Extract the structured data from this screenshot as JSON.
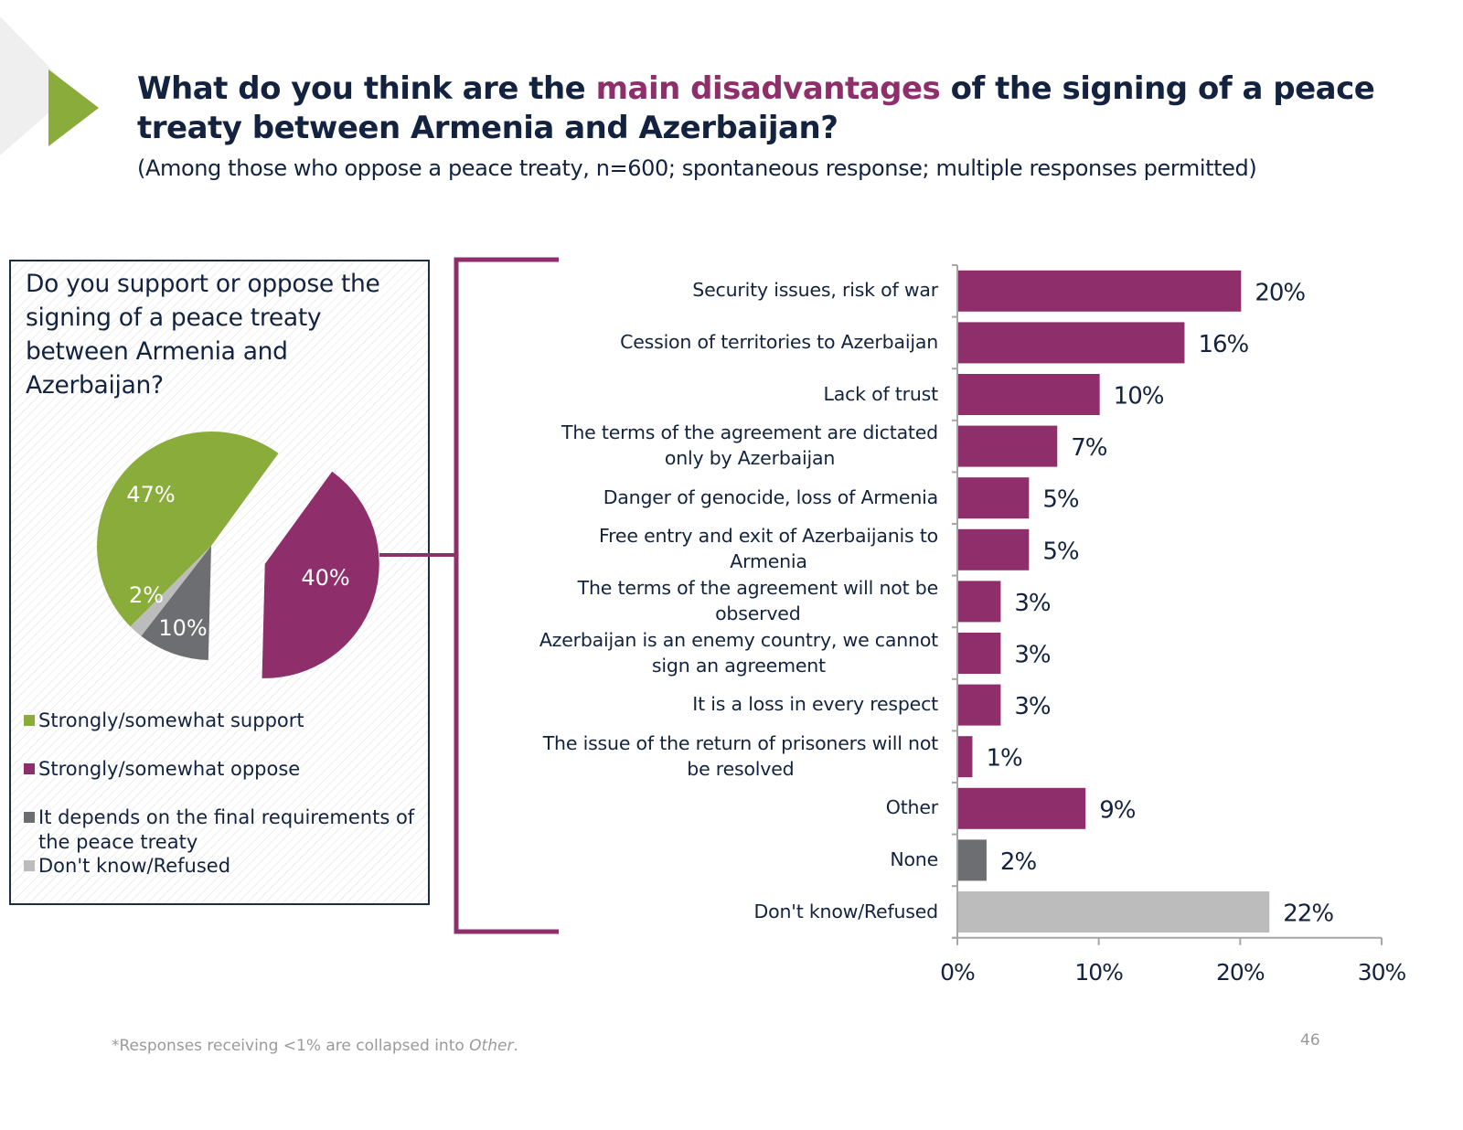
{
  "header": {
    "title_part1": "What do you think are the ",
    "title_highlight": "main disadvantages",
    "title_part2": " of the signing of a peace treaty between Armenia and Azerbaijan?",
    "subtitle": "(Among those who oppose a peace treaty, n=600; spontaneous response; multiple responses permitted)"
  },
  "colors": {
    "accent_green": "#8aac3a",
    "accent_purple": "#8e2f6c",
    "dark_gray": "#6d6e71",
    "light_gray": "#bcbcbc",
    "navy": "#13233f"
  },
  "footnote": {
    "text_before": "*Responses receiving <1% are collapsed into ",
    "text_italic": "Other",
    "text_after": "."
  },
  "page_number": "46",
  "chart_data": [
    {
      "type": "pie",
      "title": "Do you support or oppose the signing of a peace treaty between Armenia and Azerbaijan?",
      "slices": [
        {
          "name": "Strongly/somewhat support",
          "value": 47,
          "label": "47%",
          "color": "#8aac3a"
        },
        {
          "name": "Strongly/somewhat oppose",
          "value": 40,
          "label": "40%",
          "color": "#8e2f6c",
          "exploded": true
        },
        {
          "name": "It depends on the final requirements of the peace treaty",
          "value": 10,
          "label": "10%",
          "color": "#6d6e71"
        },
        {
          "name": "Don't know/Refused",
          "value": 2,
          "label": "2%",
          "color": "#bcbcbc"
        }
      ],
      "legend": [
        {
          "label": "Strongly/somewhat support",
          "color": "#8aac3a"
        },
        {
          "label": "Strongly/somewhat oppose",
          "color": "#8e2f6c"
        },
        {
          "label": "It depends on the final requirements of the peace treaty",
          "color": "#6d6e71"
        },
        {
          "label": "Don't know/Refused",
          "color": "#bcbcbc"
        }
      ],
      "legend_position": "bottom"
    },
    {
      "type": "bar",
      "orientation": "horizontal",
      "title": "",
      "xlabel": "",
      "ylabel": "",
      "xlim": [
        0,
        30
      ],
      "xticks": [
        "0%",
        "10%",
        "20%",
        "30%"
      ],
      "grid": false,
      "categories": [
        [
          "Security issues, risk of war"
        ],
        [
          "Cession of territories to Azerbaijan"
        ],
        [
          "Lack of trust"
        ],
        [
          "The terms of the agreement are dictated",
          "only by Azerbaijan"
        ],
        [
          "Danger of genocide, loss of Armenia"
        ],
        [
          "Free entry and exit of Azerbaijanis to",
          "Armenia"
        ],
        [
          "The terms of the agreement will not be",
          "observed"
        ],
        [
          "Azerbaijan is an enemy country, we cannot",
          "sign an agreement"
        ],
        [
          "It is a loss in every respect"
        ],
        [
          "The issue of the return of prisoners will not",
          "be resolved"
        ],
        [
          "Other"
        ],
        [
          "None"
        ],
        [
          "Don't know/Refused"
        ]
      ],
      "values": [
        20,
        16,
        10,
        7,
        5,
        5,
        3,
        3,
        3,
        1,
        9,
        2,
        22
      ],
      "value_labels": [
        "20%",
        "16%",
        "10%",
        "7%",
        "5%",
        "5%",
        "3%",
        "3%",
        "3%",
        "1%",
        "9%",
        "2%",
        "22%"
      ],
      "bar_colors": [
        "#8e2f6c",
        "#8e2f6c",
        "#8e2f6c",
        "#8e2f6c",
        "#8e2f6c",
        "#8e2f6c",
        "#8e2f6c",
        "#8e2f6c",
        "#8e2f6c",
        "#8e2f6c",
        "#8e2f6c",
        "#6d6e71",
        "#bcbcbc"
      ]
    }
  ]
}
